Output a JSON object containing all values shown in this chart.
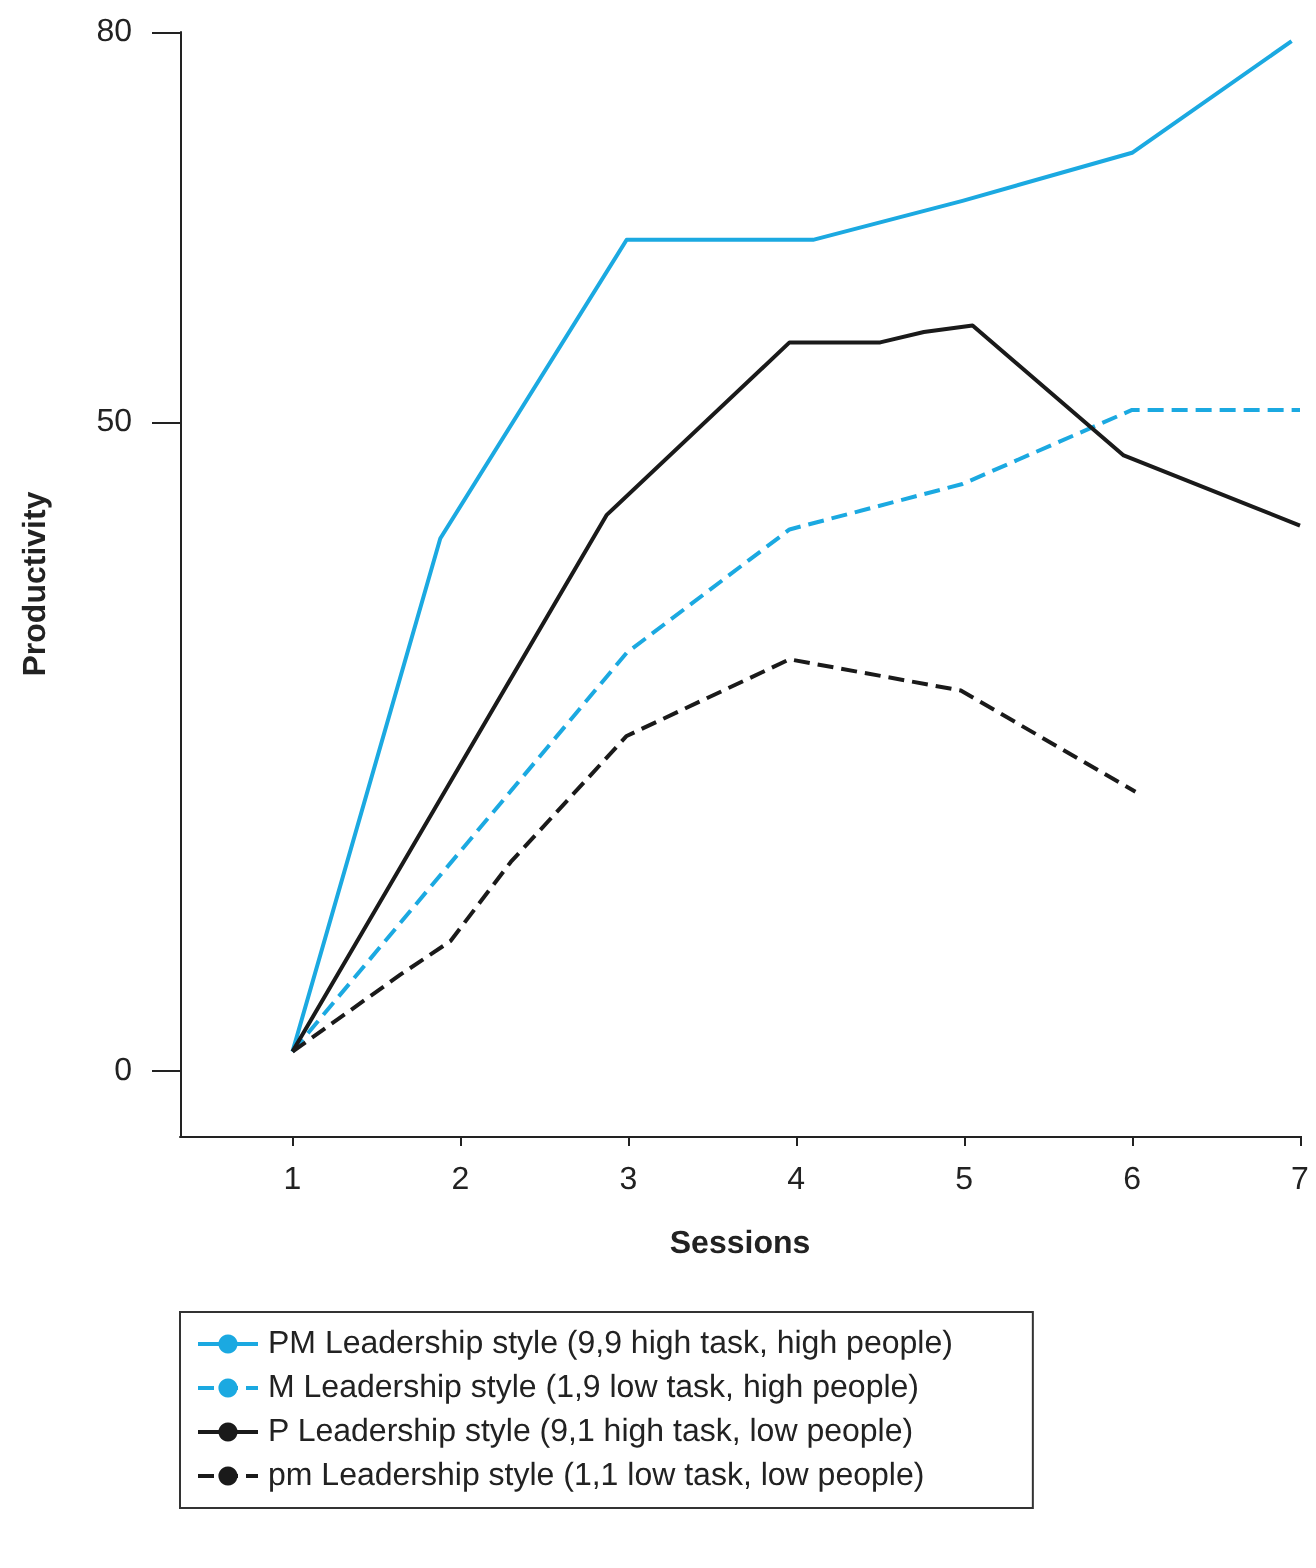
{
  "chart_data": {
    "type": "line",
    "xlabel": "Sessions",
    "ylabel": "Productivity",
    "xlim": [
      0.33,
      7
    ],
    "xticks": [
      1,
      2,
      3,
      4,
      5,
      6,
      7
    ],
    "ylim": [
      -5,
      80
    ],
    "yticks": [
      0,
      50,
      80
    ],
    "grid": false,
    "legend": "bottom",
    "marker": "none",
    "series": [
      {
        "name": "PM Leadership style (9,9 high task, high people)",
        "color": "#1ba9e1",
        "line_style": "solid",
        "x": [
          1,
          1.88,
          2.99,
          4.1,
          4.99,
          6,
          6.95
        ],
        "values": [
          1.5,
          41,
          64,
          64,
          67,
          70.7,
          79.3
        ]
      },
      {
        "name": "M Leadership style (1,9 low task, high people)",
        "color": "#1ba9e1",
        "line_style": "dashed",
        "x": [
          1,
          2.99,
          3.96,
          4.99,
          6,
          7
        ],
        "values": [
          1.5,
          32.2,
          41.7,
          45.2,
          50.9,
          50.9
        ]
      },
      {
        "name": "P Leadership style (9,1 high task, low people)",
        "color": "#1a1a1a",
        "line_style": "solid",
        "x": [
          1,
          2.87,
          3.96,
          4.5,
          4.76,
          5.05,
          5.95,
          7
        ],
        "values": [
          1.5,
          42.8,
          56.1,
          56.1,
          56.9,
          57.4,
          47.4,
          42
        ]
      },
      {
        "name": "pm Leadership style (1,1 low task, low people)",
        "color": "#1a1a1a",
        "line_style": "dashed",
        "x": [
          1,
          1.64,
          1.94,
          2.3,
          2.99,
          3.96,
          4.98,
          6.02
        ],
        "values": [
          1.5,
          7.4,
          10,
          16.1,
          25.8,
          31.7,
          29.3,
          21.5
        ]
      }
    ]
  }
}
